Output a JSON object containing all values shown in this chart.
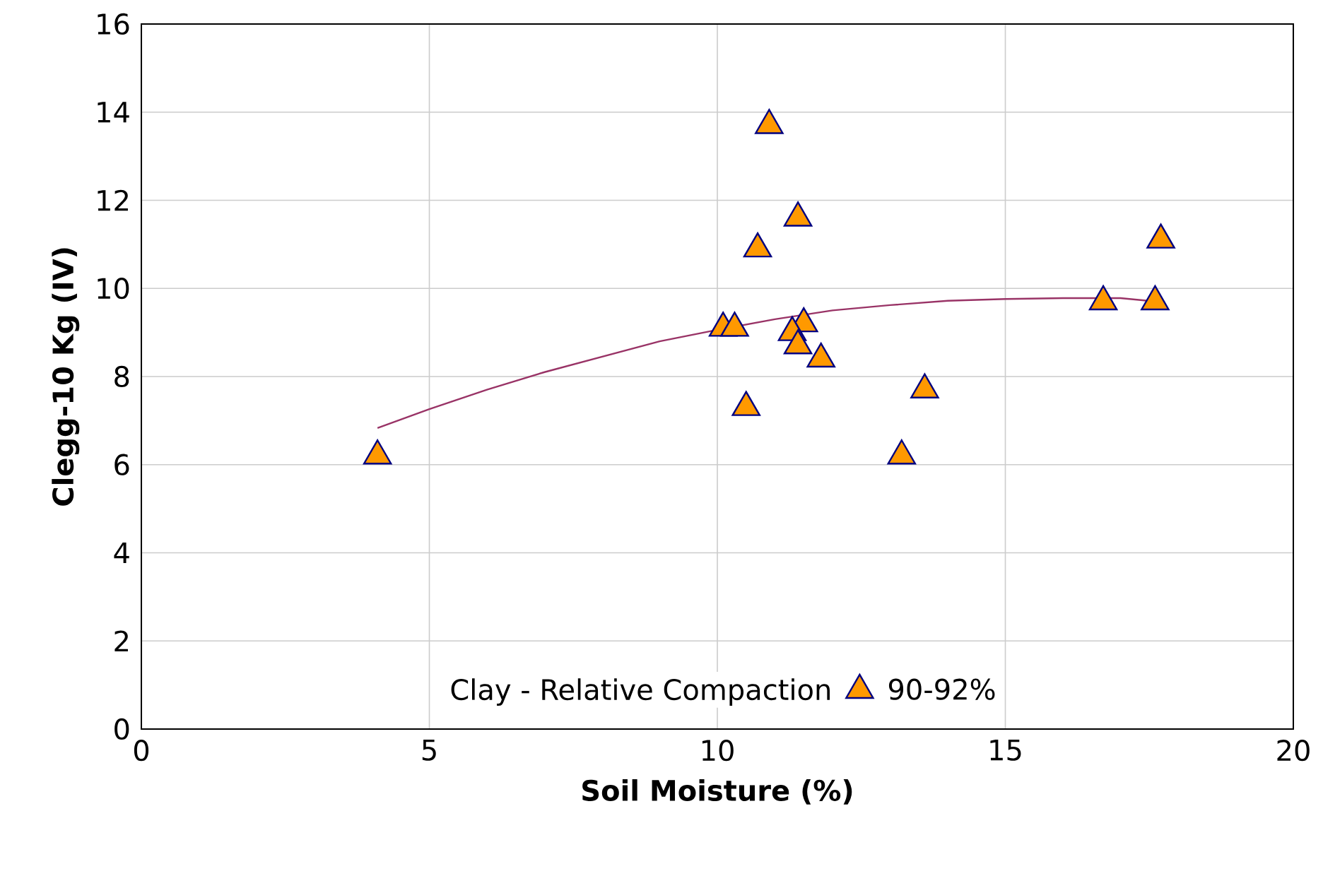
{
  "chart_data": {
    "type": "scatter",
    "xlabel": "Soil Moisture (%)",
    "ylabel": "Clegg-10 Kg (IV)",
    "legend_title": "Clay - Relative Compaction",
    "xlim": [
      0,
      20
    ],
    "ylim": [
      0,
      16
    ],
    "xticks": [
      0,
      5,
      10,
      15,
      20
    ],
    "yticks": [
      0,
      2,
      4,
      6,
      8,
      10,
      12,
      14,
      16
    ],
    "grid": true,
    "legend": "bottom",
    "marker": "triangle",
    "series": [
      {
        "name": "90-92%",
        "color": "#ff9900",
        "x": [
          4.1,
          10.1,
          10.3,
          10.9,
          10.7,
          11.4,
          11.5,
          11.3,
          11.4,
          11.8,
          10.5,
          13.6,
          13.2,
          16.7,
          17.6,
          17.7
        ],
        "values": [
          6.2,
          9.1,
          9.1,
          13.7,
          10.9,
          11.6,
          9.2,
          9.0,
          8.7,
          8.4,
          7.3,
          7.7,
          6.2,
          9.7,
          9.7,
          11.1
        ]
      },
      {
        "type": "line",
        "color": "#993366",
        "marker": "none",
        "x": [
          4.1,
          5,
          6,
          7,
          8,
          9,
          10,
          11,
          12,
          13,
          14,
          15,
          16,
          17,
          17.7
        ],
        "values": [
          6.83,
          7.26,
          7.7,
          8.1,
          8.45,
          8.8,
          9.06,
          9.3,
          9.5,
          9.62,
          9.72,
          9.76,
          9.78,
          9.78,
          9.69
        ]
      }
    ]
  }
}
